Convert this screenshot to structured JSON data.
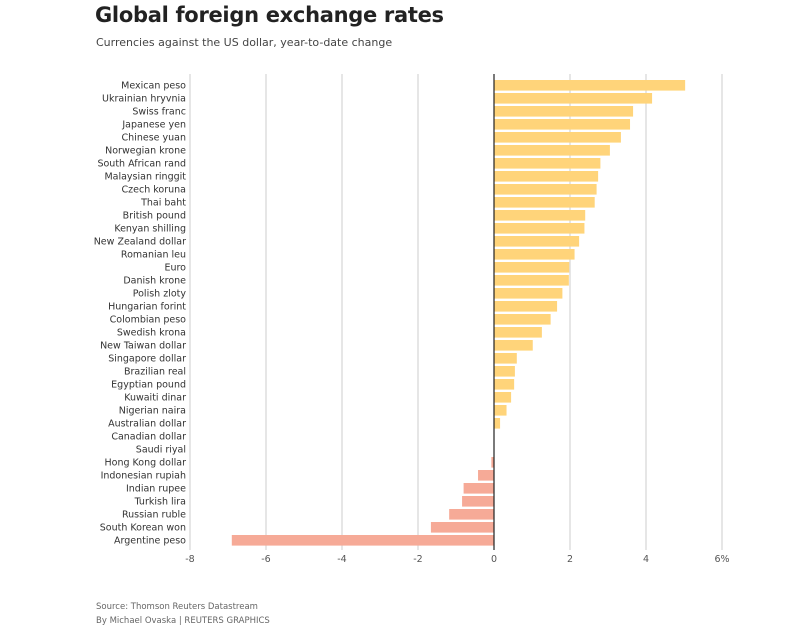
{
  "chart_data": {
    "type": "bar",
    "orientation": "horizontal",
    "title": "Global foreign exchange rates",
    "subtitle": "Currencies against the US dollar, year-to-date change",
    "xlabel": "",
    "ylabel": "",
    "xlim": [
      -8,
      6
    ],
    "xticks": [
      -8,
      -6,
      -4,
      -2,
      0,
      2,
      4,
      6
    ],
    "xtick_labels": [
      "-8",
      "-6",
      "-4",
      "-2",
      "0",
      "2",
      "4",
      "6%"
    ],
    "grid": true,
    "colors": {
      "positive": "#FFD47A",
      "negative": "#F6AA97",
      "grid": "#cccccc",
      "zero_line": "#222222"
    },
    "categories": [
      "Mexican peso",
      "Ukrainian hryvnia",
      "Swiss franc",
      "Japanese yen",
      "Chinese yuan",
      "Norwegian krone",
      "South African rand",
      "Malaysian ringgit",
      "Czech koruna",
      "Thai baht",
      "British pound",
      "Kenyan shilling",
      "New Zealand dollar",
      "Romanian leu",
      "Euro",
      "Danish krone",
      "Polish zloty",
      "Hungarian forint",
      "Colombian peso",
      "Swedish krona",
      "New Taiwan dollar",
      "Singapore dollar",
      "Brazilian real",
      "Egyptian pound",
      "Kuwaiti dinar",
      "Nigerian naira",
      "Australian dollar",
      "Canadian dollar",
      "Saudi riyal",
      "Hong Kong dollar",
      "Indonesian rupiah",
      "Indian rupee",
      "Turkish lira",
      "Russian ruble",
      "South Korean won",
      "Argentine peso"
    ],
    "values": [
      5.03,
      4.16,
      3.66,
      3.58,
      3.34,
      3.05,
      2.8,
      2.74,
      2.7,
      2.65,
      2.4,
      2.38,
      2.24,
      2.12,
      1.98,
      1.97,
      1.8,
      1.66,
      1.49,
      1.26,
      1.02,
      0.6,
      0.55,
      0.53,
      0.45,
      0.33,
      0.16,
      0.0,
      0.0,
      -0.07,
      -0.42,
      -0.8,
      -0.84,
      -1.18,
      -1.66,
      -6.9
    ]
  },
  "footer": {
    "source": "Source: Thomson Reuters Datastream",
    "byline": "By Michael Ovaska | REUTERS GRAPHICS"
  }
}
